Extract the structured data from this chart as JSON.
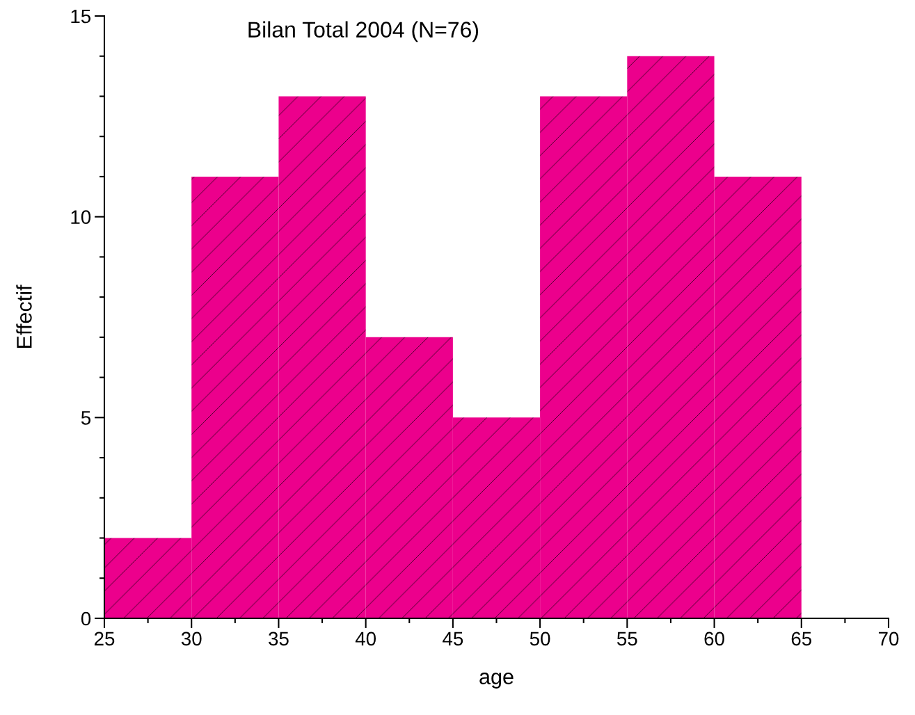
{
  "chart_data": {
    "type": "histogram",
    "title": "Bilan Total 2004 (N=76)",
    "xlabel": "age",
    "ylabel": "Effectif",
    "bins": [
      25,
      30,
      35,
      40,
      45,
      50,
      55,
      60,
      65
    ],
    "values": [
      2,
      11,
      13,
      7,
      5,
      13,
      14,
      11
    ],
    "color": "#ec008c",
    "xlim": [
      25,
      70
    ],
    "xticks": [
      25,
      30,
      35,
      40,
      45,
      50,
      55,
      60,
      65,
      70
    ],
    "ylim": [
      0,
      15
    ],
    "yticks": [
      0,
      5,
      10,
      15
    ],
    "grid": false
  }
}
